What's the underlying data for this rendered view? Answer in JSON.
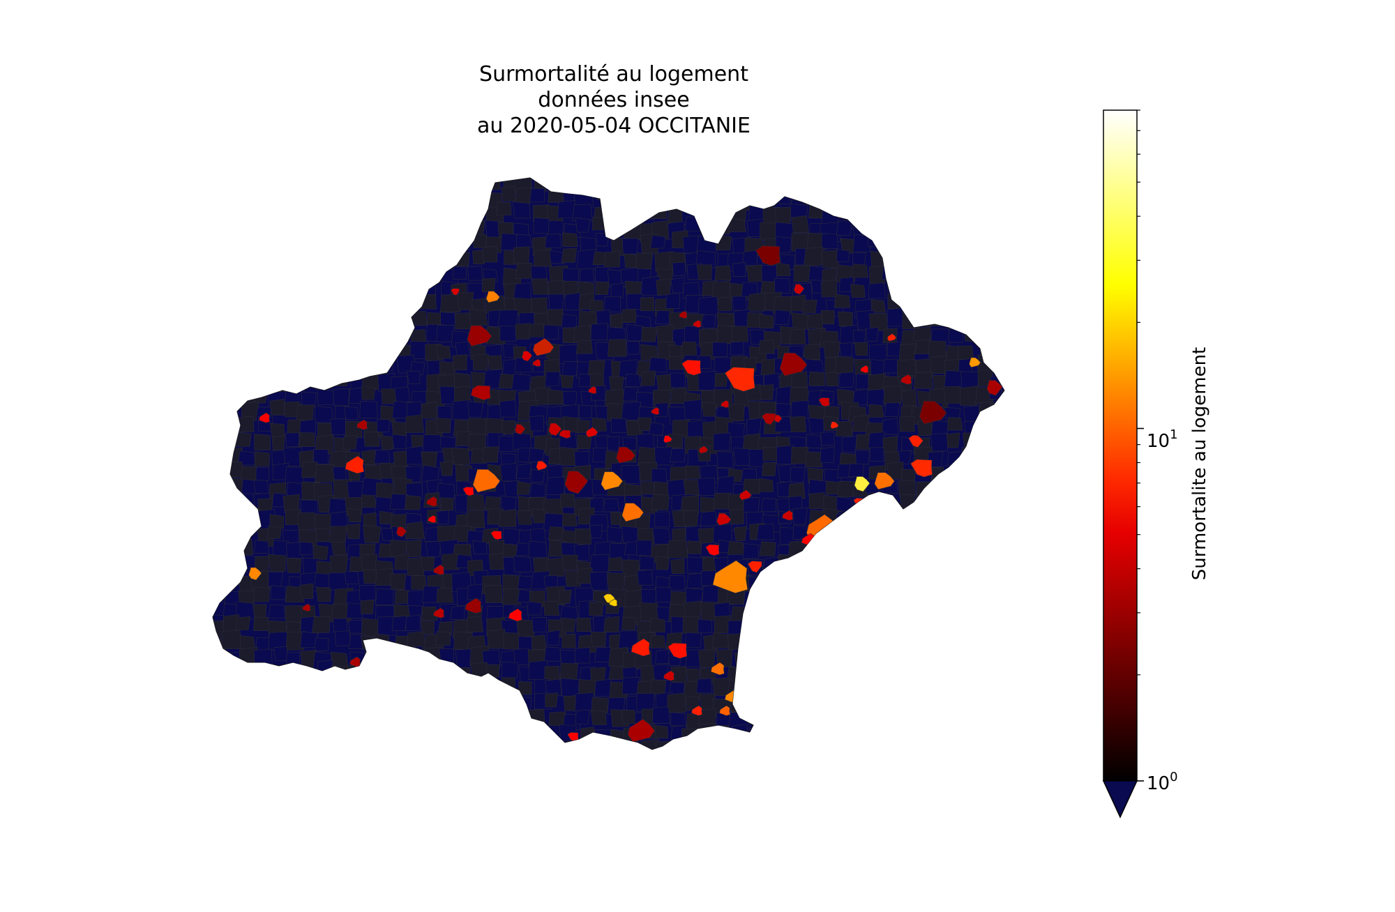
{
  "title": {
    "line1": "Surmortalité au logement",
    "line2": "données insee",
    "line3": "au 2020-05-04 OCCITANIE"
  },
  "colorbar": {
    "label": "Surmortalite au logement",
    "scale": "log",
    "range": [
      1,
      80
    ],
    "ticks": [
      {
        "base": "10",
        "exp": "0",
        "value": 1
      },
      {
        "base": "10",
        "exp": "1",
        "value": 10
      }
    ],
    "under_color": "#0a0a50",
    "colormap": "hot"
  },
  "map": {
    "region": "OCCITANIE",
    "base_colors": {
      "below_range": "#0a0a50",
      "low": "#1b1b2c",
      "border": "#2a2a3a"
    }
  }
}
